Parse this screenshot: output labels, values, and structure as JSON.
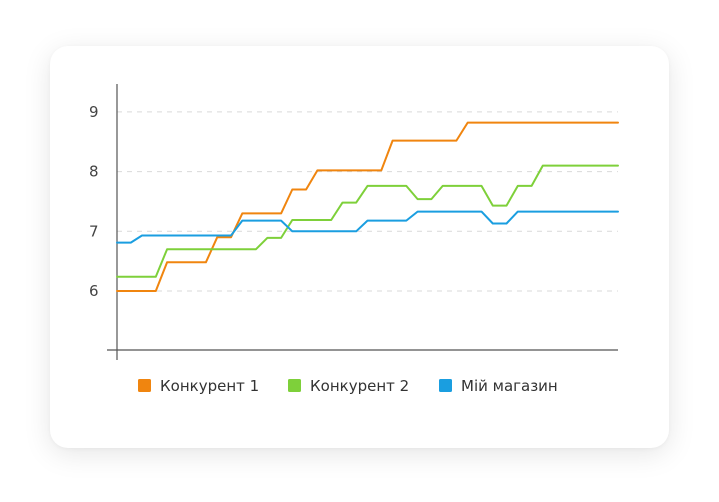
{
  "chart_data": {
    "type": "line",
    "title": "",
    "xlabel": "",
    "ylabel": "",
    "ylim": [
      5,
      9
    ],
    "yticks": [
      6,
      7,
      8,
      9
    ],
    "grid": true,
    "legend_position": "bottom",
    "x": [
      0,
      1,
      2,
      3,
      4,
      5,
      6,
      7,
      8,
      9,
      10,
      11,
      12,
      13,
      14,
      15,
      16,
      17,
      18,
      19,
      20
    ],
    "series": [
      {
        "name": "Конкурент 1",
        "color": "#F0850F",
        "values": [
          6.0,
          6.0,
          6.48,
          6.48,
          6.9,
          7.3,
          7.3,
          7.7,
          8.02,
          8.02,
          8.02,
          8.52,
          8.52,
          8.52,
          8.82,
          8.82,
          8.82,
          8.82,
          8.82,
          8.82,
          8.82
        ]
      },
      {
        "name": "Конкурент 2",
        "color": "#7ED03A",
        "values": [
          6.24,
          6.24,
          6.7,
          6.7,
          6.7,
          6.7,
          6.89,
          7.19,
          7.19,
          7.48,
          7.76,
          7.76,
          7.54,
          7.76,
          7.76,
          7.43,
          7.76,
          8.1,
          8.1,
          8.1,
          8.1
        ]
      },
      {
        "name": "Мій магазин",
        "color": "#1A9EE0",
        "values": [
          6.81,
          6.93,
          6.93,
          6.93,
          6.93,
          7.18,
          7.18,
          7.0,
          7.0,
          7.0,
          7.18,
          7.18,
          7.33,
          7.33,
          7.33,
          7.13,
          7.33,
          7.33,
          7.33,
          7.33,
          7.33
        ]
      }
    ]
  }
}
